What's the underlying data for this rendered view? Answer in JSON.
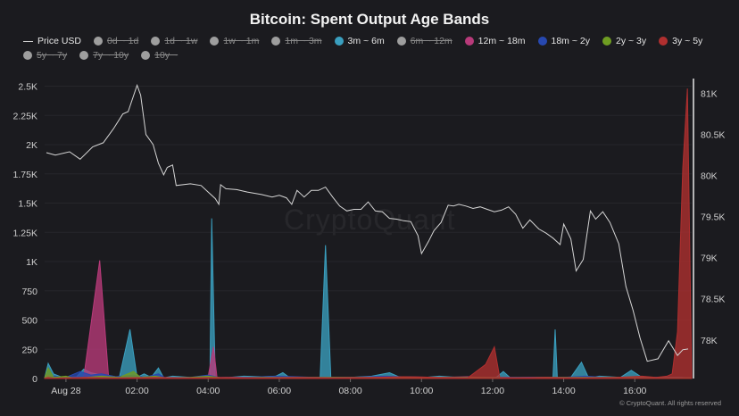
{
  "chart_data": {
    "type": "area",
    "title": "Bitcoin: Spent Output Age Bands",
    "legend": [
      {
        "name": "Price USD",
        "color": "#cfcfcf",
        "visible": true,
        "symbol": "line"
      },
      {
        "name": "0d ~ 1d",
        "color": "#9e9e9e",
        "visible": false
      },
      {
        "name": "1d ~ 1w",
        "color": "#9e9e9e",
        "visible": false
      },
      {
        "name": "1w ~ 1m",
        "color": "#9e9e9e",
        "visible": false
      },
      {
        "name": "1m ~ 3m",
        "color": "#9e9e9e",
        "visible": false
      },
      {
        "name": "3m ~ 6m",
        "color": "#3a9fbf",
        "visible": true
      },
      {
        "name": "6m ~ 12m",
        "color": "#9e9e9e",
        "visible": false
      },
      {
        "name": "12m ~ 18m",
        "color": "#b83a7a",
        "visible": true
      },
      {
        "name": "18m ~ 2y",
        "color": "#2748b0",
        "visible": true
      },
      {
        "name": "2y ~ 3y",
        "color": "#6f9d22",
        "visible": true
      },
      {
        "name": "3y ~ 5y",
        "color": "#b02f2f",
        "visible": true
      },
      {
        "name": "5y ~ 7y",
        "color": "#9e9e9e",
        "visible": false
      },
      {
        "name": "7y ~ 10y",
        "color": "#9e9e9e",
        "visible": false
      },
      {
        "name": "10y ~",
        "color": "#9e9e9e",
        "visible": false
      }
    ],
    "x_ticks": [
      "Aug 28",
      "02:00",
      "04:00",
      "06:00",
      "08:00",
      "10:00",
      "12:00",
      "14:00",
      "16:00"
    ],
    "x_tick_hours": [
      -1,
      1,
      3,
      5,
      7,
      9,
      11,
      13,
      15
    ],
    "x_range_hours": [
      -1.6,
      16.6
    ],
    "y_left_ticks": [
      "0",
      "250",
      "500",
      "750",
      "1K",
      "1.25K",
      "1.5K",
      "1.75K",
      "2K",
      "2.25K",
      "2.5K"
    ],
    "y_left_values": [
      0,
      250,
      500,
      750,
      1000,
      1250,
      1500,
      1750,
      2000,
      2250,
      2500
    ],
    "y_left_range": [
      0,
      2550
    ],
    "y_right_ticks": [
      "78K",
      "78.5K",
      "79K",
      "79.5K",
      "80K",
      "80.5K",
      "81K"
    ],
    "y_right_values": [
      78000,
      78500,
      79000,
      79500,
      80000,
      80500,
      81000
    ],
    "y_right_range": [
      77530,
      81160
    ],
    "series": [
      {
        "name": "Price USD",
        "axis": "right",
        "color": "#d6d6d6",
        "kind": "line",
        "points": [
          [
            -1.55,
            80280
          ],
          [
            -1.3,
            80250
          ],
          [
            -0.9,
            80290
          ],
          [
            -0.6,
            80200
          ],
          [
            -0.25,
            80350
          ],
          [
            0.05,
            80400
          ],
          [
            0.35,
            80580
          ],
          [
            0.6,
            80750
          ],
          [
            0.75,
            80780
          ],
          [
            1.0,
            81100
          ],
          [
            1.1,
            80980
          ],
          [
            1.25,
            80500
          ],
          [
            1.45,
            80380
          ],
          [
            1.6,
            80150
          ],
          [
            1.75,
            80010
          ],
          [
            1.85,
            80100
          ],
          [
            2.0,
            80130
          ],
          [
            2.1,
            79880
          ],
          [
            2.5,
            79900
          ],
          [
            2.8,
            79880
          ],
          [
            3.0,
            79800
          ],
          [
            3.2,
            79720
          ],
          [
            3.3,
            79650
          ],
          [
            3.35,
            79890
          ],
          [
            3.5,
            79840
          ],
          [
            3.8,
            79830
          ],
          [
            4.1,
            79800
          ],
          [
            4.5,
            79770
          ],
          [
            4.8,
            79740
          ],
          [
            5.0,
            79760
          ],
          [
            5.2,
            79730
          ],
          [
            5.35,
            79650
          ],
          [
            5.5,
            79820
          ],
          [
            5.7,
            79740
          ],
          [
            5.9,
            79820
          ],
          [
            6.1,
            79820
          ],
          [
            6.3,
            79860
          ],
          [
            6.5,
            79740
          ],
          [
            6.7,
            79630
          ],
          [
            6.9,
            79570
          ],
          [
            7.1,
            79590
          ],
          [
            7.3,
            79590
          ],
          [
            7.5,
            79680
          ],
          [
            7.7,
            79570
          ],
          [
            7.9,
            79560
          ],
          [
            8.1,
            79480
          ],
          [
            8.3,
            79470
          ],
          [
            8.5,
            79450
          ],
          [
            8.7,
            79440
          ],
          [
            8.9,
            79270
          ],
          [
            9.0,
            79050
          ],
          [
            9.2,
            79200
          ],
          [
            9.35,
            79330
          ],
          [
            9.55,
            79430
          ],
          [
            9.75,
            79640
          ],
          [
            9.9,
            79630
          ],
          [
            10.05,
            79650
          ],
          [
            10.25,
            79630
          ],
          [
            10.45,
            79600
          ],
          [
            10.65,
            79620
          ],
          [
            10.85,
            79590
          ],
          [
            11.05,
            79560
          ],
          [
            11.25,
            79580
          ],
          [
            11.45,
            79620
          ],
          [
            11.65,
            79530
          ],
          [
            11.85,
            79360
          ],
          [
            12.05,
            79460
          ],
          [
            12.3,
            79350
          ],
          [
            12.5,
            79300
          ],
          [
            12.7,
            79240
          ],
          [
            12.9,
            79160
          ],
          [
            13.0,
            79410
          ],
          [
            13.2,
            79230
          ],
          [
            13.35,
            78840
          ],
          [
            13.55,
            78980
          ],
          [
            13.75,
            79570
          ],
          [
            13.9,
            79470
          ],
          [
            14.1,
            79560
          ],
          [
            14.3,
            79430
          ],
          [
            14.55,
            79170
          ],
          [
            14.75,
            78650
          ],
          [
            14.95,
            78360
          ],
          [
            15.15,
            78020
          ],
          [
            15.35,
            77740
          ],
          [
            15.65,
            77770
          ],
          [
            15.95,
            77990
          ],
          [
            16.2,
            77810
          ],
          [
            16.35,
            77880
          ],
          [
            16.5,
            77890
          ]
        ]
      },
      {
        "name": "3m ~ 6m",
        "axis": "left",
        "color": "#3a9fbf",
        "kind": "area",
        "points": [
          [
            -1.6,
            5
          ],
          [
            -1.5,
            130
          ],
          [
            -1.35,
            40
          ],
          [
            -1.1,
            10
          ],
          [
            -0.7,
            15
          ],
          [
            -0.5,
            80
          ],
          [
            -0.3,
            50
          ],
          [
            0.0,
            30
          ],
          [
            0.3,
            20
          ],
          [
            0.5,
            10
          ],
          [
            0.8,
            420
          ],
          [
            1.0,
            10
          ],
          [
            1.2,
            40
          ],
          [
            1.4,
            10
          ],
          [
            1.6,
            90
          ],
          [
            1.75,
            5
          ],
          [
            2.0,
            20
          ],
          [
            2.5,
            10
          ],
          [
            2.9,
            5
          ],
          [
            3.05,
            5
          ],
          [
            3.1,
            1370
          ],
          [
            3.2,
            5
          ],
          [
            3.6,
            10
          ],
          [
            4.0,
            20
          ],
          [
            4.5,
            15
          ],
          [
            4.9,
            20
          ],
          [
            5.1,
            50
          ],
          [
            5.3,
            5
          ],
          [
            5.8,
            10
          ],
          [
            6.15,
            5
          ],
          [
            6.3,
            1140
          ],
          [
            6.45,
            5
          ],
          [
            7.0,
            10
          ],
          [
            7.6,
            20
          ],
          [
            8.1,
            50
          ],
          [
            8.4,
            10
          ],
          [
            9.1,
            10
          ],
          [
            9.5,
            20
          ],
          [
            10.0,
            10
          ],
          [
            10.6,
            10
          ],
          [
            11.1,
            10
          ],
          [
            11.3,
            60
          ],
          [
            11.5,
            5
          ],
          [
            12.0,
            10
          ],
          [
            12.7,
            10
          ],
          [
            12.76,
            420
          ],
          [
            12.82,
            10
          ],
          [
            13.2,
            10
          ],
          [
            13.5,
            140
          ],
          [
            13.7,
            5
          ],
          [
            14.0,
            20
          ],
          [
            14.6,
            10
          ],
          [
            14.9,
            70
          ],
          [
            15.2,
            10
          ],
          [
            15.8,
            10
          ],
          [
            16.2,
            10
          ],
          [
            16.6,
            5
          ]
        ]
      },
      {
        "name": "12m ~ 18m",
        "axis": "left",
        "color": "#b83a7a",
        "kind": "area",
        "points": [
          [
            -1.6,
            5
          ],
          [
            -1.5,
            30
          ],
          [
            -1.35,
            10
          ],
          [
            -1.1,
            10
          ],
          [
            -0.5,
            10
          ],
          [
            -0.05,
            1010
          ],
          [
            0.2,
            10
          ],
          [
            0.6,
            5
          ],
          [
            1.0,
            10
          ],
          [
            1.6,
            5
          ],
          [
            2.5,
            5
          ],
          [
            3.0,
            15
          ],
          [
            3.15,
            270
          ],
          [
            3.25,
            5
          ],
          [
            3.8,
            10
          ],
          [
            4.5,
            5
          ],
          [
            5.5,
            10
          ],
          [
            6.5,
            10
          ],
          [
            7.5,
            10
          ],
          [
            8.5,
            15
          ],
          [
            9.5,
            10
          ],
          [
            10.3,
            15
          ],
          [
            10.8,
            5
          ],
          [
            11.5,
            10
          ],
          [
            12.5,
            10
          ],
          [
            13.5,
            5
          ],
          [
            14.5,
            10
          ],
          [
            15.2,
            5
          ],
          [
            15.8,
            10
          ],
          [
            16.6,
            5
          ]
        ]
      },
      {
        "name": "18m ~ 2y",
        "axis": "left",
        "color": "#2748b0",
        "kind": "area",
        "points": [
          [
            -1.6,
            5
          ],
          [
            -1.3,
            20
          ],
          [
            -1.0,
            10
          ],
          [
            -0.6,
            60
          ],
          [
            -0.3,
            30
          ],
          [
            0.0,
            40
          ],
          [
            0.4,
            15
          ],
          [
            0.9,
            30
          ],
          [
            1.2,
            10
          ],
          [
            1.6,
            40
          ],
          [
            1.8,
            5
          ],
          [
            2.5,
            10
          ],
          [
            3.0,
            30
          ],
          [
            3.3,
            10
          ],
          [
            4.0,
            10
          ],
          [
            5.0,
            20
          ],
          [
            6.0,
            10
          ],
          [
            7.0,
            10
          ],
          [
            8.0,
            20
          ],
          [
            9.0,
            10
          ],
          [
            10.0,
            10
          ],
          [
            11.0,
            10
          ],
          [
            12.0,
            10
          ],
          [
            13.0,
            10
          ],
          [
            13.6,
            20
          ],
          [
            14.2,
            10
          ],
          [
            15.0,
            10
          ],
          [
            15.6,
            10
          ],
          [
            16.2,
            10
          ],
          [
            16.6,
            5
          ]
        ]
      },
      {
        "name": "2y ~ 3y",
        "axis": "left",
        "color": "#6f9d22",
        "kind": "area",
        "points": [
          [
            -1.6,
            5
          ],
          [
            -1.5,
            90
          ],
          [
            -1.35,
            10
          ],
          [
            -1.0,
            20
          ],
          [
            -0.8,
            5
          ],
          [
            -0.4,
            10
          ],
          [
            0.0,
            20
          ],
          [
            0.5,
            10
          ],
          [
            0.9,
            60
          ],
          [
            1.1,
            10
          ],
          [
            1.5,
            20
          ],
          [
            1.8,
            5
          ],
          [
            2.5,
            10
          ],
          [
            3.0,
            20
          ],
          [
            3.4,
            5
          ],
          [
            4.5,
            10
          ],
          [
            5.5,
            10
          ],
          [
            6.5,
            10
          ],
          [
            7.5,
            10
          ],
          [
            8.5,
            10
          ],
          [
            9.5,
            10
          ],
          [
            10.5,
            10
          ],
          [
            11.5,
            5
          ],
          [
            12.5,
            10
          ],
          [
            13.5,
            10
          ],
          [
            14.5,
            10
          ],
          [
            15.5,
            5
          ],
          [
            16.6,
            5
          ]
        ]
      },
      {
        "name": "3y ~ 5y",
        "axis": "left",
        "color": "#b02f2f",
        "kind": "area",
        "points": [
          [
            -1.6,
            3
          ],
          [
            -1.5,
            10
          ],
          [
            -1.35,
            3
          ],
          [
            -0.5,
            10
          ],
          [
            0.5,
            5
          ],
          [
            1.5,
            10
          ],
          [
            2.5,
            5
          ],
          [
            3.5,
            10
          ],
          [
            4.5,
            5
          ],
          [
            5.5,
            10
          ],
          [
            6.5,
            5
          ],
          [
            7.5,
            10
          ],
          [
            8.5,
            15
          ],
          [
            9.5,
            10
          ],
          [
            10.3,
            5
          ],
          [
            10.8,
            120
          ],
          [
            11.05,
            270
          ],
          [
            11.2,
            10
          ],
          [
            11.6,
            5
          ],
          [
            12.5,
            10
          ],
          [
            13.5,
            5
          ],
          [
            14.5,
            10
          ],
          [
            15.2,
            20
          ],
          [
            15.6,
            10
          ],
          [
            15.9,
            20
          ],
          [
            16.05,
            40
          ],
          [
            16.2,
            400
          ],
          [
            16.35,
            1800
          ],
          [
            16.48,
            2480
          ],
          [
            16.6,
            5
          ]
        ]
      }
    ]
  },
  "watermark": "CryptoQuant",
  "copyright": "© CryptoQuant. All rights reserved"
}
